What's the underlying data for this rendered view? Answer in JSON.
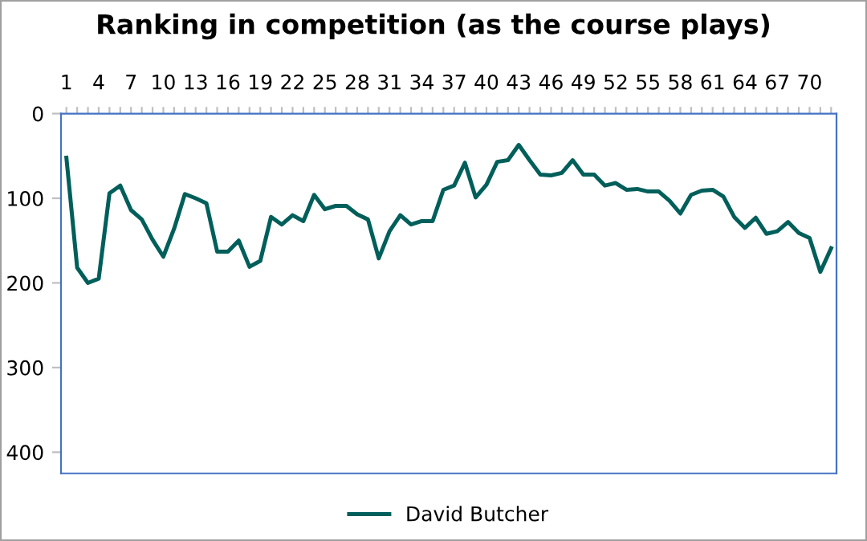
{
  "chart_data": {
    "type": "line",
    "title": "Ranking in competition (as the course plays)",
    "categories": [
      "1",
      null,
      null,
      "4",
      null,
      null,
      "7",
      null,
      null,
      "10",
      null,
      null,
      "13",
      null,
      null,
      "16",
      null,
      null,
      "19",
      null,
      null,
      "22",
      null,
      null,
      "25",
      null,
      null,
      "28",
      null,
      null,
      "31",
      null,
      null,
      "34",
      null,
      null,
      "37",
      null,
      null,
      "40",
      null,
      null,
      "43",
      null,
      null,
      "46",
      null,
      null,
      "49",
      null,
      null,
      "52",
      null,
      null,
      "55",
      null,
      null,
      "58",
      null,
      null,
      "61",
      null,
      null,
      "64",
      null,
      null,
      "67",
      null,
      null,
      "70",
      null,
      null
    ],
    "series": [
      {
        "name": "David Butcher",
        "color": "#005f5a",
        "values": [
          52,
          182,
          200,
          195,
          94,
          85,
          114,
          125,
          149,
          169,
          136,
          95,
          100,
          106,
          163,
          163,
          150,
          181,
          174,
          122,
          131,
          120,
          127,
          96,
          113,
          109,
          109,
          119,
          125,
          171,
          139,
          120,
          131,
          127,
          127,
          90,
          85,
          58,
          99,
          84,
          57,
          55,
          37,
          55,
          72,
          73,
          70,
          55,
          72,
          72,
          85,
          82,
          90,
          89,
          92,
          92,
          103,
          118,
          96,
          91,
          90,
          98,
          122,
          135,
          123,
          142,
          139,
          128,
          141,
          147,
          187,
          159
        ]
      }
    ],
    "ylim": [
      425,
      0
    ],
    "yticks": [
      0,
      100,
      200,
      300,
      400
    ],
    "grid": false,
    "legend": "bottom",
    "marker": "none",
    "line_style": "solid"
  }
}
